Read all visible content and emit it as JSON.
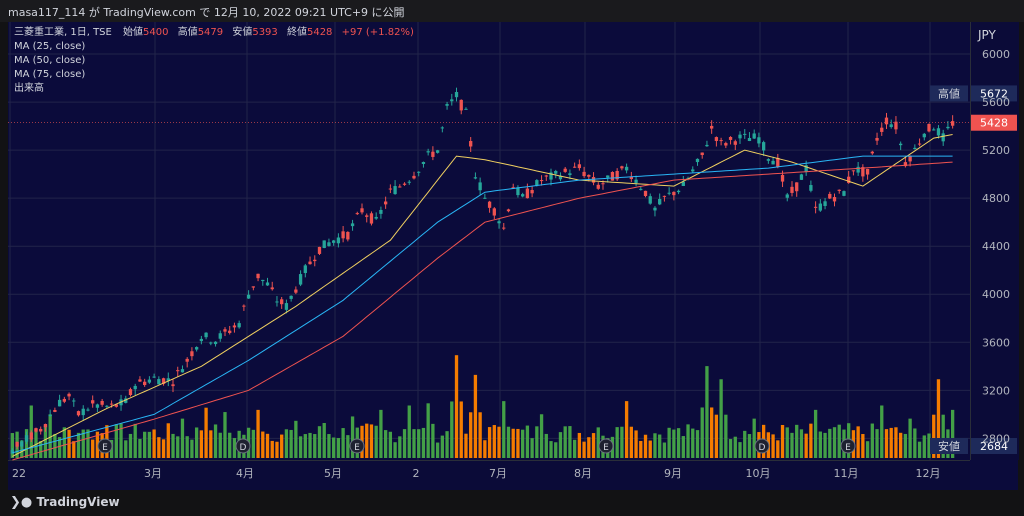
{
  "header": {
    "caption": "masa117_114 が TradingView.com で 12月 10, 2022 09:21 UTC+9 に公開"
  },
  "legend": {
    "symbol": "三菱重工業, 1日, TSE",
    "open_label": "始値",
    "open": "5400",
    "high_label": "高値",
    "high": "5479",
    "low_label": "安値",
    "low": "5393",
    "close_label": "終値",
    "close": "5428",
    "change": "+97 (+1.82%)",
    "ma25": "MA (25, close)",
    "ma50": "MA (50, close)",
    "ma75": "MA (75, close)",
    "volume": "出来高"
  },
  "price_axis": {
    "currency": "JPY",
    "markers": [
      {
        "label": "高値",
        "value": "5672"
      },
      {
        "label": "",
        "value": "5428"
      },
      {
        "label": "安値",
        "value": "2684"
      }
    ]
  },
  "time_axis_labels": [
    "22",
    "3月",
    "4月",
    "5月",
    "2",
    "7月",
    "8月",
    "9月",
    "10月",
    "11月",
    "12月"
  ],
  "footer": {
    "brand": "TradingView"
  },
  "colors": {
    "up": "#26a69a",
    "down": "#ef5350",
    "ma25": "#f0d060",
    "ma50": "#29b6f6",
    "ma75": "#ef5350",
    "vol_up": "#43a047",
    "vol_down": "#f57c00",
    "background": "#0b0b3b",
    "grid": "#22244a"
  },
  "chart_data": {
    "type": "candlestick",
    "ylim": [
      2620,
      6200
    ],
    "yticks": [
      6000,
      5600,
      5200,
      4800,
      4400,
      4000,
      3600,
      3200,
      2800
    ],
    "y_scale": "linear",
    "grid": true,
    "close_path": [
      [
        0,
        2700
      ],
      [
        6,
        2880
      ],
      [
        10,
        3100
      ],
      [
        12,
        3150
      ],
      [
        14,
        3000
      ],
      [
        17,
        3080
      ],
      [
        21,
        3060
      ],
      [
        24,
        3100
      ],
      [
        26,
        3250
      ],
      [
        30,
        3300
      ],
      [
        34,
        3280
      ],
      [
        37,
        3450
      ],
      [
        40,
        3650
      ],
      [
        43,
        3620
      ],
      [
        46,
        3700
      ],
      [
        48,
        3760
      ],
      [
        50,
        4000
      ],
      [
        52,
        4150
      ],
      [
        54,
        4080
      ],
      [
        56,
        3950
      ],
      [
        58,
        3900
      ],
      [
        62,
        4200
      ],
      [
        65,
        4380
      ],
      [
        68,
        4450
      ],
      [
        71,
        4500
      ],
      [
        74,
        4700
      ],
      [
        77,
        4600
      ],
      [
        80,
        4850
      ],
      [
        82,
        4900
      ],
      [
        85,
        5000
      ],
      [
        88,
        5150
      ],
      [
        90,
        5200
      ],
      [
        92,
        5550
      ],
      [
        94,
        5650
      ],
      [
        96,
        5500
      ],
      [
        98,
        5000
      ],
      [
        100,
        4800
      ],
      [
        102,
        4700
      ],
      [
        104,
        4550
      ],
      [
        106,
        4900
      ],
      [
        108,
        4800
      ],
      [
        112,
        4950
      ],
      [
        116,
        5000
      ],
      [
        120,
        5050
      ],
      [
        124,
        4900
      ],
      [
        126,
        4950
      ],
      [
        130,
        5050
      ],
      [
        134,
        4850
      ],
      [
        136,
        4700
      ],
      [
        138,
        4800
      ],
      [
        142,
        4900
      ],
      [
        146,
        5150
      ],
      [
        148,
        5380
      ],
      [
        150,
        5250
      ],
      [
        154,
        5300
      ],
      [
        158,
        5300
      ],
      [
        160,
        5150
      ],
      [
        162,
        5100
      ],
      [
        164,
        4800
      ],
      [
        166,
        4900
      ],
      [
        168,
        5050
      ],
      [
        170,
        4700
      ],
      [
        173,
        4800
      ],
      [
        176,
        4850
      ],
      [
        178,
        5050
      ],
      [
        181,
        5000
      ],
      [
        183,
        5300
      ],
      [
        185,
        5450
      ],
      [
        187,
        5400
      ],
      [
        189,
        5100
      ],
      [
        191,
        5200
      ],
      [
        193,
        5350
      ],
      [
        195,
        5400
      ],
      [
        197,
        5300
      ],
      [
        199,
        5428
      ]
    ],
    "ma_paths": {
      "MA (25, close)": [
        [
          0,
          2650
        ],
        [
          20,
          3050
        ],
        [
          40,
          3400
        ],
        [
          60,
          3900
        ],
        [
          80,
          4450
        ],
        [
          94,
          5150
        ],
        [
          100,
          5120
        ],
        [
          120,
          4950
        ],
        [
          140,
          4900
        ],
        [
          155,
          5200
        ],
        [
          165,
          5100
        ],
        [
          180,
          4900
        ],
        [
          195,
          5300
        ],
        [
          199,
          5330
        ]
      ],
      "MA (50, close)": [
        [
          0,
          2680
        ],
        [
          30,
          3000
        ],
        [
          50,
          3450
        ],
        [
          70,
          3950
        ],
        [
          90,
          4600
        ],
        [
          100,
          4850
        ],
        [
          120,
          4950
        ],
        [
          140,
          5000
        ],
        [
          160,
          5050
        ],
        [
          180,
          5150
        ],
        [
          199,
          5150
        ]
      ],
      "MA (75, close)": [
        [
          0,
          2620
        ],
        [
          30,
          2960
        ],
        [
          50,
          3200
        ],
        [
          70,
          3650
        ],
        [
          90,
          4300
        ],
        [
          100,
          4600
        ],
        [
          120,
          4800
        ],
        [
          140,
          4950
        ],
        [
          160,
          5000
        ],
        [
          180,
          5050
        ],
        [
          199,
          5100
        ]
      ]
    },
    "volume_spikes": [
      [
        4,
        2400
      ],
      [
        8,
        2000
      ],
      [
        15,
        1300
      ],
      [
        20,
        1500
      ],
      [
        28,
        1200
      ],
      [
        36,
        1800
      ],
      [
        41,
        2300
      ],
      [
        45,
        2100
      ],
      [
        52,
        2200
      ],
      [
        60,
        1700
      ],
      [
        66,
        1600
      ],
      [
        72,
        1900
      ],
      [
        78,
        2200
      ],
      [
        84,
        2400
      ],
      [
        88,
        2500
      ],
      [
        94,
        4700
      ],
      [
        98,
        3800
      ],
      [
        104,
        2600
      ],
      [
        112,
        2000
      ],
      [
        124,
        1400
      ],
      [
        130,
        2600
      ],
      [
        140,
        1300
      ],
      [
        147,
        4200
      ],
      [
        150,
        3600
      ],
      [
        157,
        1800
      ],
      [
        164,
        1400
      ],
      [
        170,
        2200
      ],
      [
        176,
        1300
      ],
      [
        184,
        2400
      ],
      [
        190,
        1800
      ],
      [
        196,
        3600
      ],
      [
        199,
        2200
      ]
    ]
  }
}
